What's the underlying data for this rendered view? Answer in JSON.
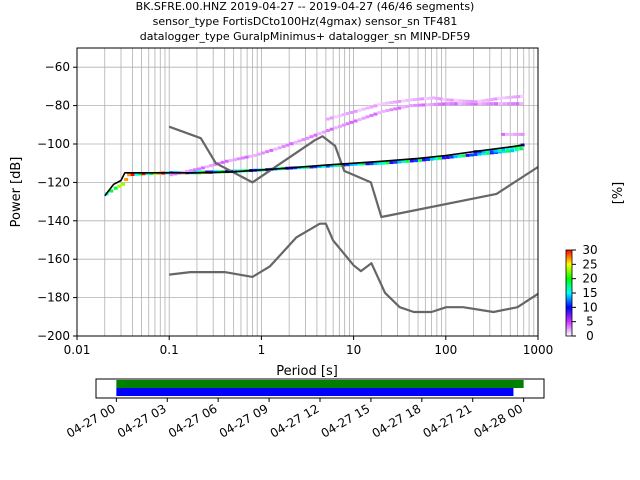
{
  "title_lines": [
    "BK.SFRE.00.HNZ   2019-04-27 -- 2019-04-27  (46/46 segments)",
    "sensor_type FortisDCto100Hz(4gmax) sensor_sn TF481",
    "datalogger_type GuralpMinimus+ datalogger_sn MINP-DF59"
  ],
  "chart_data": [
    {
      "type": "heatmap",
      "subtype": "ppsd",
      "xlabel": "Period [s]",
      "ylabel": "Power [dB]",
      "xscale": "log",
      "xlim": [
        0.01,
        1000
      ],
      "ylim": [
        -200,
        -50
      ],
      "x_ticks": [
        0.01,
        0.1,
        1,
        10,
        100,
        1000
      ],
      "x_tick_labels": [
        "0.01",
        "0.1",
        "1",
        "10",
        "100",
        "1000"
      ],
      "y_ticks": [
        -200,
        -180,
        -160,
        -140,
        -120,
        -100,
        -80,
        -60
      ],
      "y_tick_labels": [
        "−200",
        "−180",
        "−160",
        "−140",
        "−120",
        "−100",
        "−80",
        "−60"
      ],
      "grid": true,
      "colorbar": {
        "label": "[%]",
        "min": 0,
        "max": 30,
        "ticks": [
          0,
          5,
          10,
          15,
          20,
          25,
          30
        ],
        "tick_labels": [
          "0",
          "5",
          "10",
          "15",
          "20",
          "25",
          "30"
        ],
        "colors": [
          "#ffffff",
          "#cc33ff",
          "#0000ff",
          "#00ffff",
          "#00ff00",
          "#ffff00",
          "#ff0000"
        ]
      },
      "series": [
        {
          "name": "",
          "role": "noise_model_upper",
          "color": "#666666",
          "x": [
            0.1,
            0.22,
            0.32,
            0.8,
            3.8,
            4.6,
            6.3,
            7.9,
            15.4,
            20,
            354.8,
            1000
          ],
          "y": [
            -91,
            -97,
            -110,
            -120,
            -98,
            -96,
            -101,
            -114,
            -120,
            -138,
            -126,
            -112
          ]
        },
        {
          "name": "",
          "role": "noise_model_lower",
          "color": "#666666",
          "x": [
            0.1,
            0.17,
            0.4,
            0.8,
            1.24,
            2.4,
            4.3,
            5,
            6,
            10,
            12,
            15.6,
            21.9,
            31.6,
            45,
            70,
            101,
            154,
            328,
            600,
            1000
          ],
          "y": [
            -168,
            -166.7,
            -166.7,
            -169.2,
            -163.7,
            -148.6,
            -141.5,
            -141.5,
            -150.2,
            -163.2,
            -166.2,
            -162.1,
            -177.5,
            -185,
            -187.5,
            -187.5,
            -185,
            -185,
            -187.5,
            -185,
            -178
          ]
        },
        {
          "name": "",
          "role": "mode",
          "color": "#000000",
          "x": [
            0.02,
            0.025,
            0.03,
            0.033,
            0.05,
            0.1,
            0.2,
            0.5,
            1,
            2,
            5,
            10,
            20,
            50,
            100,
            200,
            500,
            700
          ],
          "y": [
            -127,
            -121,
            -119,
            -115,
            -115,
            -115,
            -115,
            -114.5,
            -113.5,
            -112.5,
            -111,
            -110,
            -109,
            -107.5,
            -106,
            -104,
            -101.5,
            -100.5
          ]
        }
      ],
      "density_bands": [
        {
          "x": [
            0.02,
            0.025,
            0.03,
            0.035,
            0.05,
            0.1,
            0.2,
            0.4,
            0.6
          ],
          "y": [
            -126,
            -123,
            -121,
            -116,
            -115.5,
            -115,
            -115,
            -114.5,
            -114
          ],
          "percent": 25
        },
        {
          "x": [
            0.1,
            0.3,
            0.6,
            1,
            2,
            5,
            10,
            20,
            50,
            100,
            200,
            500,
            700
          ],
          "y": [
            -115,
            -114.5,
            -114,
            -113.5,
            -112.5,
            -111.5,
            -110.5,
            -110,
            -108.5,
            -107,
            -105.5,
            -103.5,
            -102
          ],
          "percent": 15
        },
        {
          "x": [
            0.1,
            0.2,
            0.4,
            0.8,
            1.5,
            3,
            5,
            10,
            20,
            40,
            100,
            300,
            700
          ],
          "y": [
            -116,
            -113,
            -109,
            -106,
            -102,
            -97,
            -93,
            -88,
            -83,
            -80,
            -79,
            -79,
            -79
          ],
          "percent": 3
        },
        {
          "x": [
            5,
            10,
            20,
            40,
            70,
            100,
            200,
            400,
            700
          ],
          "y": [
            -87,
            -83,
            -79,
            -77,
            -76,
            -77,
            -78,
            -76,
            -75
          ],
          "percent": 2
        },
        {
          "x": [
            400,
            500,
            600,
            700
          ],
          "y": [
            -95,
            -95,
            -95,
            -95
          ],
          "percent": 3
        },
        {
          "x": [
            200,
            300,
            400,
            500,
            600,
            700
          ],
          "y": [
            -104,
            -104,
            -103,
            -102,
            -101,
            -100
          ],
          "percent": 15
        }
      ]
    },
    {
      "type": "bar",
      "subtype": "data_coverage",
      "xlabel": "",
      "x_tick_labels": [
        "04-27 00",
        "04-27 03",
        "04-27 06",
        "04-27 09",
        "04-27 12",
        "04-27 15",
        "04-27 18",
        "04-27 21",
        "04-28 00"
      ],
      "x_ticks_hours": [
        0,
        3,
        6,
        9,
        12,
        15,
        18,
        21,
        24
      ],
      "xlim_hours": [
        -1.2,
        25.2
      ],
      "bars": [
        {
          "name": "",
          "color": "#008000",
          "start_hours": 0,
          "end_hours": 24.0
        },
        {
          "name": "",
          "color": "#0000ff",
          "start_hours": 0,
          "end_hours": 23.4
        }
      ]
    }
  ]
}
